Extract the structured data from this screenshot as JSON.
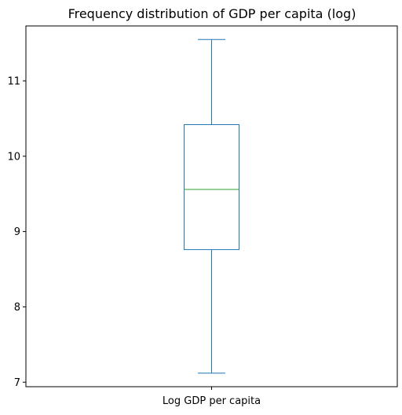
{
  "chart_data": {
    "type": "box",
    "title": "Frequency distribution of GDP per capita (log)",
    "xlabel": "",
    "ylabel": "",
    "categories": [
      "Log GDP per capita"
    ],
    "boxes": [
      {
        "name": "Log GDP per capita",
        "whisker_low": 7.12,
        "q1": 8.76,
        "median": 9.56,
        "q3": 10.42,
        "whisker_high": 11.55
      }
    ],
    "ylim": [
      6.94,
      11.73
    ],
    "yticks": [
      7,
      8,
      9,
      10,
      11
    ],
    "grid": false,
    "colors": {
      "box": "#1f77b4",
      "median": "#2ca02c",
      "axis": "#000000"
    }
  }
}
